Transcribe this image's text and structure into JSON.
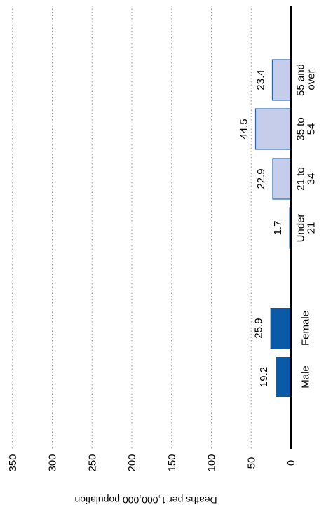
{
  "chart_data": {
    "type": "bar",
    "orientation": "horizontal",
    "rotated": true,
    "ylabel": "Deaths per 1,000,000 population",
    "xlim": [
      0,
      350
    ],
    "ticks": [
      "0",
      "50",
      "100",
      "150",
      "200",
      "250",
      "300",
      "350"
    ],
    "tick_values": [
      0,
      50,
      100,
      150,
      200,
      250,
      300,
      350
    ],
    "grid": true,
    "groups": [
      {
        "color": "#0b5aa8",
        "bars": [
          {
            "label": [
              "Male"
            ],
            "value": 19.2,
            "value_label": "19.2"
          },
          {
            "label": [
              "Female"
            ],
            "value": 25.9,
            "value_label": "25.9"
          }
        ]
      },
      {
        "color": "#c6cdea",
        "edge": "#2468b0",
        "bars": [
          {
            "label": [
              "Under",
              "21"
            ],
            "value": 1.7,
            "value_label": "1.7"
          },
          {
            "label": [
              "21 to",
              "34"
            ],
            "value": 22.9,
            "value_label": "22.9"
          },
          {
            "label": [
              "35 to",
              "54"
            ],
            "value": 44.5,
            "value_label": "44.5"
          },
          {
            "label": [
              "55 and",
              "over"
            ],
            "value": 23.4,
            "value_label": "23.4"
          }
        ]
      }
    ]
  }
}
